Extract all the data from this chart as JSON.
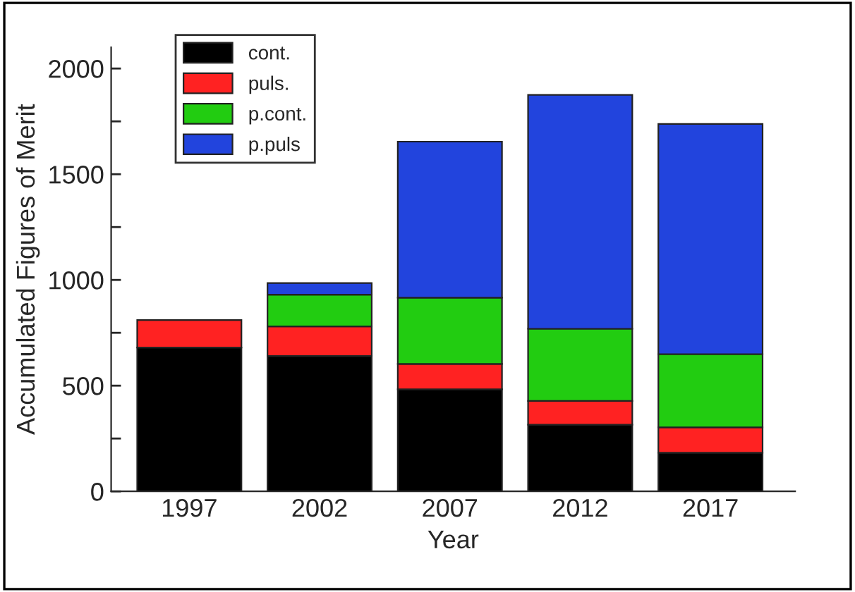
{
  "chart_data": {
    "type": "bar",
    "stacked": true,
    "xlabel": "Year",
    "ylabel": "Accumulated Figures of Merit",
    "categories": [
      "1997",
      "2002",
      "2007",
      "2012",
      "2017"
    ],
    "series": [
      {
        "name": "cont.",
        "color": "#000000",
        "values": [
          680,
          640,
          483,
          315,
          183
        ]
      },
      {
        "name": "puls.",
        "color": "#ff2222",
        "values": [
          130,
          140,
          120,
          113,
          120
        ]
      },
      {
        "name": "p.cont.",
        "color": "#22cc11",
        "values": [
          null,
          150,
          313,
          341,
          346
        ]
      },
      {
        "name": "p.puls",
        "color": "#2244dd",
        "values": [
          null,
          55,
          738,
          1106,
          1089
        ]
      }
    ],
    "ylim": [
      0,
      2100
    ],
    "yticks": [
      0,
      {
        "value": 250,
        "label": null
      },
      500,
      {
        "value": 750,
        "label": null
      },
      1000,
      {
        "value": 1250,
        "label": null
      },
      1500,
      {
        "value": 1750,
        "label": null
      },
      2000
    ],
    "legend": "top left",
    "grid": false
  }
}
